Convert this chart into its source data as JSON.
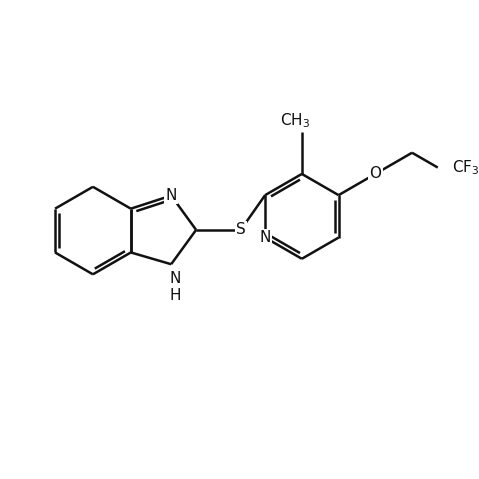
{
  "background": "white",
  "line_color": "#111111",
  "lw": 1.8,
  "figsize": [
    4.79,
    4.79
  ],
  "dpi": 100,
  "xlim": [
    0,
    10
  ],
  "ylim": [
    0,
    10
  ]
}
